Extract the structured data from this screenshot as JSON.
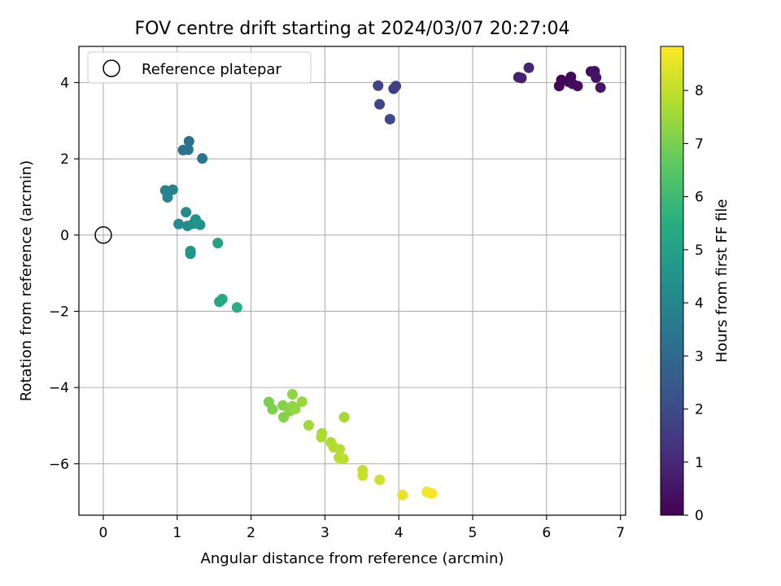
{
  "chart_data": {
    "type": "scatter",
    "title": "FOV centre drift starting at 2024/03/07 20:27:04",
    "xlabel": "Angular distance from reference (arcmin)",
    "ylabel": "Rotation from reference (arcmin)",
    "xlim": [
      -0.33,
      7.07
    ],
    "ylim": [
      -7.35,
      4.95
    ],
    "xticks": [
      0,
      1,
      2,
      3,
      4,
      5,
      6,
      7
    ],
    "yticks": [
      -6,
      -4,
      -2,
      0,
      2,
      4
    ],
    "grid": true,
    "colormap": "viridis",
    "colorbar": {
      "label": "Hours from first FF file",
      "range": [
        0,
        8.83
      ],
      "ticks": [
        0,
        1,
        2,
        3,
        4,
        5,
        6,
        7,
        8
      ]
    },
    "legend": {
      "position": "top-left",
      "entries": [
        "Reference platepar"
      ]
    },
    "reference_point": {
      "x": 0,
      "y": 0,
      "label": "Reference platepar"
    },
    "points": [
      {
        "x": 6.2,
        "y": 4.07,
        "hours": 0.05
      },
      {
        "x": 6.17,
        "y": 3.91,
        "hours": 0.1
      },
      {
        "x": 6.3,
        "y": 4.02,
        "hours": 0.15
      },
      {
        "x": 6.33,
        "y": 4.15,
        "hours": 0.2
      },
      {
        "x": 6.35,
        "y": 3.97,
        "hours": 0.25
      },
      {
        "x": 6.42,
        "y": 3.91,
        "hours": 0.3
      },
      {
        "x": 6.6,
        "y": 4.29,
        "hours": 0.35
      },
      {
        "x": 6.65,
        "y": 4.3,
        "hours": 0.4
      },
      {
        "x": 6.67,
        "y": 4.13,
        "hours": 0.45
      },
      {
        "x": 6.73,
        "y": 3.87,
        "hours": 0.5
      },
      {
        "x": 5.62,
        "y": 4.14,
        "hours": 0.7
      },
      {
        "x": 5.66,
        "y": 4.12,
        "hours": 0.8
      },
      {
        "x": 5.76,
        "y": 4.39,
        "hours": 0.9
      },
      {
        "x": 3.93,
        "y": 3.84,
        "hours": 1.55
      },
      {
        "x": 3.96,
        "y": 3.91,
        "hours": 1.65
      },
      {
        "x": 3.72,
        "y": 3.92,
        "hours": 1.75
      },
      {
        "x": 3.74,
        "y": 3.43,
        "hours": 1.85
      },
      {
        "x": 3.88,
        "y": 3.04,
        "hours": 1.95
      },
      {
        "x": 1.16,
        "y": 2.46,
        "hours": 3.2
      },
      {
        "x": 1.08,
        "y": 2.23,
        "hours": 3.3
      },
      {
        "x": 1.15,
        "y": 2.24,
        "hours": 3.35
      },
      {
        "x": 1.34,
        "y": 2.01,
        "hours": 3.4
      },
      {
        "x": 0.84,
        "y": 1.17,
        "hours": 3.85
      },
      {
        "x": 0.94,
        "y": 1.19,
        "hours": 3.9
      },
      {
        "x": 0.87,
        "y": 0.99,
        "hours": 3.95
      },
      {
        "x": 1.02,
        "y": 0.29,
        "hours": 4.2
      },
      {
        "x": 1.12,
        "y": 0.6,
        "hours": 4.25
      },
      {
        "x": 1.14,
        "y": 0.24,
        "hours": 4.3
      },
      {
        "x": 1.22,
        "y": 0.3,
        "hours": 4.35
      },
      {
        "x": 1.25,
        "y": 0.41,
        "hours": 4.4
      },
      {
        "x": 1.31,
        "y": 0.27,
        "hours": 4.45
      },
      {
        "x": 1.18,
        "y": -0.42,
        "hours": 4.55
      },
      {
        "x": 1.18,
        "y": -0.49,
        "hours": 4.6
      },
      {
        "x": 1.55,
        "y": -0.21,
        "hours": 5.05
      },
      {
        "x": 1.57,
        "y": -1.75,
        "hours": 5.3
      },
      {
        "x": 1.61,
        "y": -1.68,
        "hours": 5.35
      },
      {
        "x": 1.81,
        "y": -1.9,
        "hours": 5.5
      },
      {
        "x": 2.24,
        "y": -4.38,
        "hours": 7.0
      },
      {
        "x": 2.29,
        "y": -4.57,
        "hours": 7.05
      },
      {
        "x": 2.43,
        "y": -4.47,
        "hours": 7.1
      },
      {
        "x": 2.44,
        "y": -4.78,
        "hours": 7.15
      },
      {
        "x": 2.52,
        "y": -4.62,
        "hours": 7.2
      },
      {
        "x": 2.56,
        "y": -4.49,
        "hours": 7.25
      },
      {
        "x": 2.56,
        "y": -4.18,
        "hours": 7.3
      },
      {
        "x": 2.6,
        "y": -4.56,
        "hours": 7.35
      },
      {
        "x": 2.69,
        "y": -4.37,
        "hours": 7.4
      },
      {
        "x": 2.78,
        "y": -4.99,
        "hours": 7.55
      },
      {
        "x": 2.96,
        "y": -5.2,
        "hours": 7.65
      },
      {
        "x": 2.95,
        "y": -5.3,
        "hours": 7.7
      },
      {
        "x": 3.08,
        "y": -5.44,
        "hours": 7.75
      },
      {
        "x": 3.12,
        "y": -5.57,
        "hours": 7.8
      },
      {
        "x": 3.19,
        "y": -5.84,
        "hours": 7.85
      },
      {
        "x": 3.2,
        "y": -5.62,
        "hours": 7.85
      },
      {
        "x": 3.25,
        "y": -5.87,
        "hours": 7.9
      },
      {
        "x": 3.26,
        "y": -4.78,
        "hours": 7.6
      },
      {
        "x": 3.51,
        "y": -6.17,
        "hours": 8.05
      },
      {
        "x": 3.51,
        "y": -6.31,
        "hours": 8.1
      },
      {
        "x": 3.74,
        "y": -6.42,
        "hours": 8.2
      },
      {
        "x": 4.05,
        "y": -6.82,
        "hours": 8.5
      },
      {
        "x": 4.38,
        "y": -6.74,
        "hours": 8.65
      },
      {
        "x": 4.41,
        "y": -6.76,
        "hours": 8.7
      },
      {
        "x": 4.45,
        "y": -6.78,
        "hours": 8.75
      }
    ]
  }
}
